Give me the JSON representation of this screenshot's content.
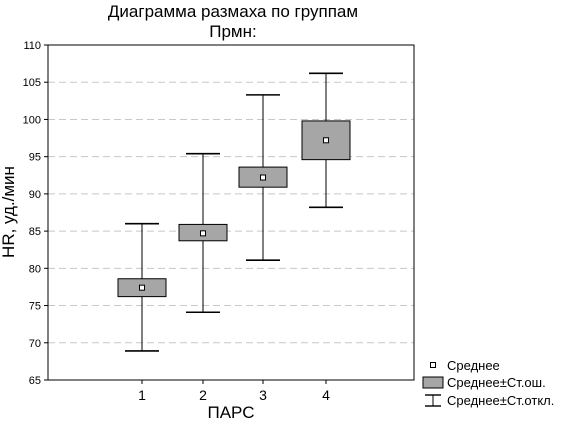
{
  "chart_data": {
    "type": "box",
    "title": "Диаграмма размаха по группам",
    "subtitle": "Прмн:",
    "xlabel": "ПАРС",
    "ylabel": "HR, уд./мин",
    "ylim": [
      65,
      110
    ],
    "yticks": [
      65,
      70,
      75,
      80,
      85,
      90,
      95,
      100,
      105,
      110
    ],
    "grid": true,
    "legend_position": "bottom-right",
    "categories": [
      "1",
      "2",
      "3",
      "4"
    ],
    "groups": [
      {
        "category": "1",
        "mean": 77.4,
        "se_low": 76.2,
        "se_high": 78.6,
        "sd_low": 68.9,
        "sd_high": 86.0
      },
      {
        "category": "2",
        "mean": 84.7,
        "se_low": 83.7,
        "se_high": 85.9,
        "sd_low": 74.1,
        "sd_high": 95.4
      },
      {
        "category": "3",
        "mean": 92.2,
        "se_low": 90.9,
        "se_high": 93.6,
        "sd_low": 81.1,
        "sd_high": 103.3
      },
      {
        "category": "4",
        "mean": 97.2,
        "se_low": 94.6,
        "se_high": 99.8,
        "sd_low": 88.2,
        "sd_high": 106.2
      }
    ],
    "legend": [
      {
        "kind": "mean",
        "label": "Среднее"
      },
      {
        "kind": "se",
        "label": "Среднее±Ст.ош."
      },
      {
        "kind": "sd",
        "label": "Среднее±Ст.откл."
      }
    ],
    "colors": {
      "box_fill": "#a6a6a6",
      "grid": "#c8c8c8",
      "line": "#000000",
      "background": "#ffffff"
    }
  }
}
